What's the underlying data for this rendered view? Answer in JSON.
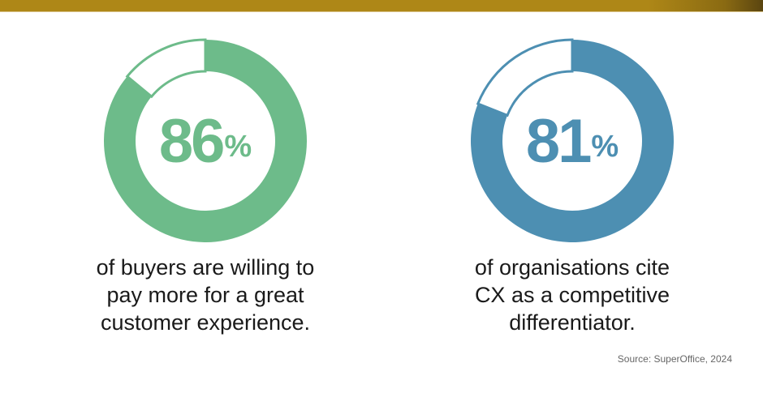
{
  "chart_data": [
    {
      "type": "pie",
      "subtype": "donut",
      "value": 86,
      "max": 100,
      "label": "86",
      "unit": "%",
      "color": "#6dbb8a",
      "caption": [
        "of buyers are willing to",
        "pay more for a great",
        "customer experience."
      ]
    },
    {
      "type": "pie",
      "subtype": "donut",
      "value": 81,
      "max": 100,
      "label": "81",
      "unit": "%",
      "color": "#4d8fb2",
      "caption": [
        "of organisations cite",
        "CX as a competitive",
        "differentiator."
      ]
    }
  ],
  "source": "Source: SuperOffice, 2024",
  "colors": {
    "top_bar": "#ae8717"
  }
}
